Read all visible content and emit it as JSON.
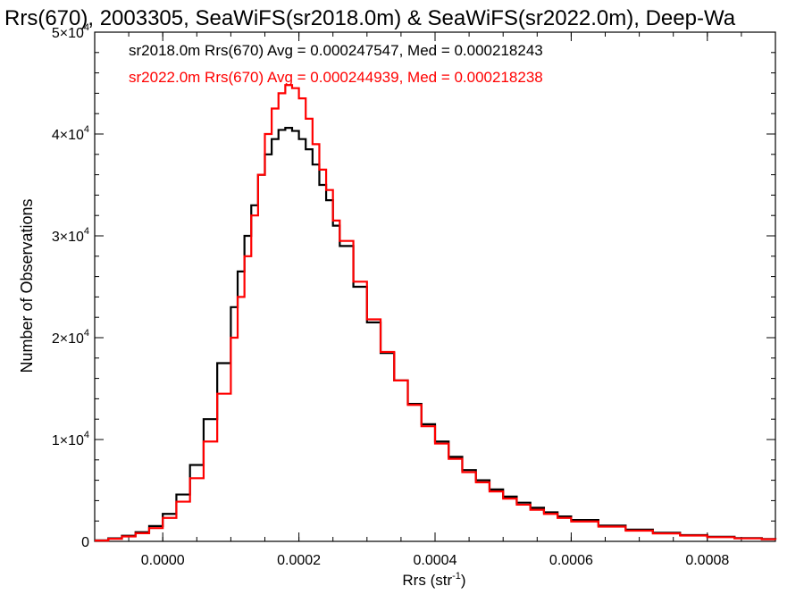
{
  "chart_data": {
    "type": "line",
    "title": "Rrs(670), 2003305, SeaWiFS(sr2018.0m) & SeaWiFS(sr2022.0m), Deep-Wa",
    "xlabel_base": "Rrs (str",
    "xlabel_sup": "-1",
    "xlabel_end": ")",
    "ylabel": "Number of Observations",
    "xlim": [
      -0.0001,
      0.0009
    ],
    "ylim": [
      0,
      50000
    ],
    "x_tick_labels": [
      "0.0000",
      "0.0002",
      "0.0004",
      "0.0006",
      "0.0008"
    ],
    "x_tick_values": [
      0.0,
      0.0002,
      0.0004,
      0.0006,
      0.0008
    ],
    "y_ticks": [
      {
        "value": 0,
        "base": "0",
        "exp": ""
      },
      {
        "value": 10000,
        "base": "1×10",
        "exp": "4"
      },
      {
        "value": 20000,
        "base": "2×10",
        "exp": "4"
      },
      {
        "value": 30000,
        "base": "3×10",
        "exp": "4"
      },
      {
        "value": 40000,
        "base": "4×10",
        "exp": "4"
      },
      {
        "value": 50000,
        "base": "5×10",
        "exp": "4"
      }
    ],
    "legend_placement": "top-left",
    "annotations": [
      {
        "text": "sr2018.0m Rrs(670) Avg = 0.000247547, Med = 0.000218243",
        "color": "#000000"
      },
      {
        "text": "sr2022.0m Rrs(670) Avg = 0.000244939, Med = 0.000218238",
        "color": "#ff0000"
      }
    ],
    "series": [
      {
        "color": "#000000",
        "x": [
          -0.0001,
          -8e-05,
          -6e-05,
          -4e-05,
          -2e-05,
          0.0,
          2e-05,
          4e-05,
          6e-05,
          8e-05,
          0.0001,
          0.00011,
          0.00012,
          0.00013,
          0.00014,
          0.00015,
          0.00016,
          0.00017,
          0.00018,
          0.00019,
          0.0002,
          0.00021,
          0.00022,
          0.00023,
          0.00024,
          0.00025,
          0.00026,
          0.00028,
          0.0003,
          0.00032,
          0.00034,
          0.00036,
          0.00038,
          0.0004,
          0.00042,
          0.00044,
          0.00046,
          0.00048,
          0.0005,
          0.00052,
          0.00054,
          0.00056,
          0.00058,
          0.0006,
          0.00064,
          0.00068,
          0.00072,
          0.00076,
          0.0008,
          0.00084,
          0.00088,
          0.0009
        ],
        "y": [
          100,
          300,
          550,
          900,
          1500,
          2700,
          4600,
          7500,
          12000,
          17500,
          23000,
          26500,
          30000,
          33000,
          36000,
          38000,
          39500,
          40400,
          40600,
          40300,
          39500,
          38500,
          37000,
          35000,
          33500,
          31000,
          29000,
          25000,
          21500,
          18500,
          15800,
          13500,
          11500,
          9800,
          8300,
          7000,
          6000,
          5100,
          4400,
          3800,
          3300,
          2850,
          2450,
          2100,
          1550,
          1150,
          850,
          620,
          450,
          320,
          230,
          180
        ]
      },
      {
        "color": "#ff0000",
        "x": [
          -0.0001,
          -8e-05,
          -6e-05,
          -4e-05,
          -2e-05,
          0.0,
          2e-05,
          4e-05,
          6e-05,
          8e-05,
          0.0001,
          0.00011,
          0.00012,
          0.00013,
          0.00014,
          0.00015,
          0.00016,
          0.00017,
          0.00018,
          0.00019,
          0.0002,
          0.00021,
          0.00022,
          0.00023,
          0.00024,
          0.00025,
          0.00026,
          0.00028,
          0.0003,
          0.00032,
          0.00034,
          0.00036,
          0.00038,
          0.0004,
          0.00042,
          0.00044,
          0.00046,
          0.00048,
          0.0005,
          0.00052,
          0.00054,
          0.00056,
          0.00058,
          0.0006,
          0.00064,
          0.00068,
          0.00072,
          0.00076,
          0.0008,
          0.00084,
          0.00088,
          0.0009
        ],
        "y": [
          80,
          250,
          480,
          800,
          1300,
          2300,
          3900,
          6200,
          9800,
          14500,
          20000,
          24000,
          28000,
          32000,
          36000,
          40000,
          42500,
          44000,
          44800,
          44500,
          43500,
          41500,
          39000,
          36500,
          34500,
          31500,
          29500,
          25500,
          21800,
          18600,
          15800,
          13400,
          11300,
          9600,
          8100,
          6800,
          5800,
          4900,
          4200,
          3600,
          3100,
          2700,
          2300,
          1950,
          1450,
          1050,
          780,
          570,
          410,
          290,
          210,
          160
        ]
      }
    ]
  }
}
